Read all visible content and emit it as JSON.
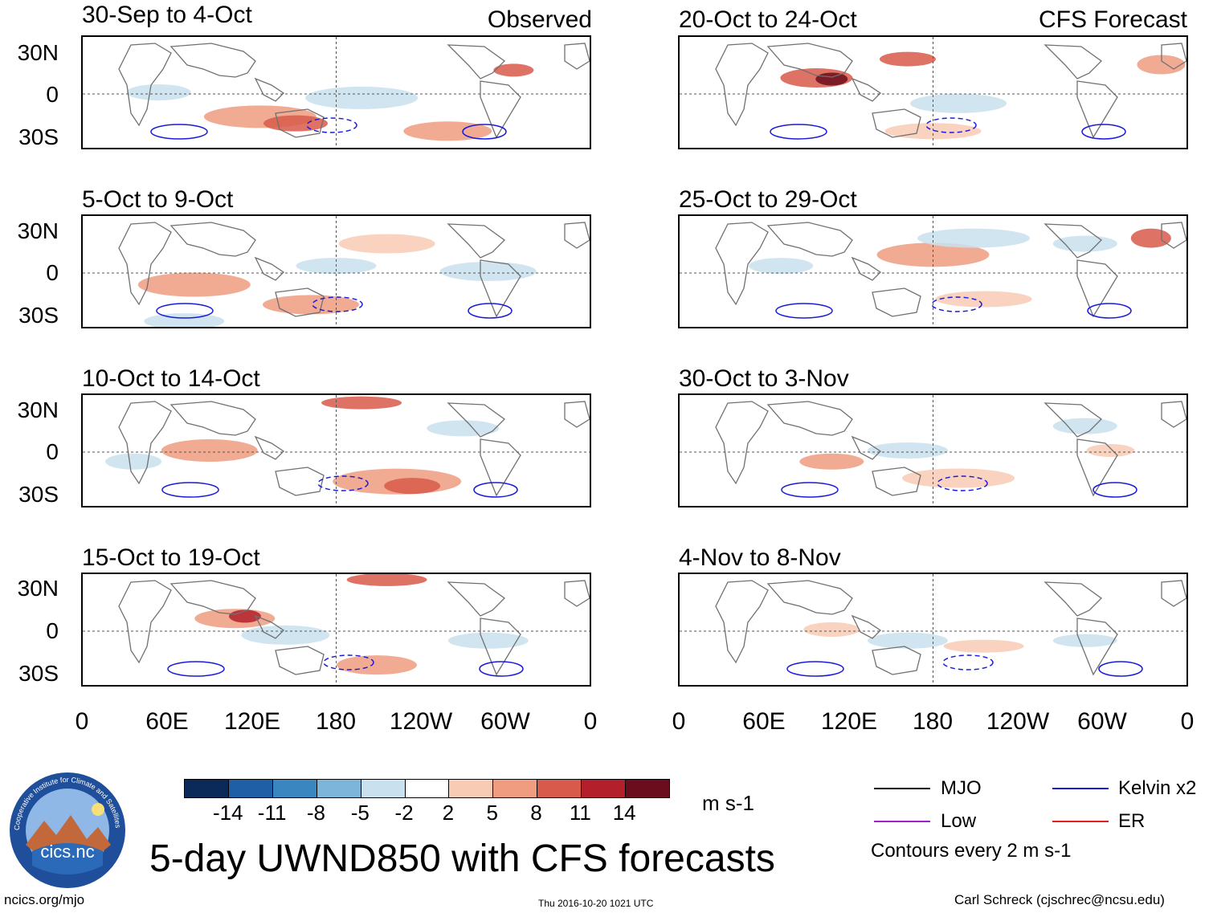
{
  "figure_title": "5-day UWND850 with CFS forecasts",
  "observed_label": "Observed",
  "forecast_label": "CFS Forecast",
  "panels": [
    {
      "period": "30-Sep to 4-Oct"
    },
    {
      "period": "5-Oct to 9-Oct"
    },
    {
      "period": "10-Oct to 14-Oct"
    },
    {
      "period": "15-Oct to 19-Oct"
    },
    {
      "period": "20-Oct to 24-Oct"
    },
    {
      "period": "25-Oct to 29-Oct"
    },
    {
      "period": "30-Oct to 3-Nov"
    },
    {
      "period": "4-Nov to 8-Nov"
    }
  ],
  "lat_labels": [
    "30N",
    "0",
    "30S"
  ],
  "lon_labels": [
    "0",
    "60E",
    "120E",
    "180",
    "120W",
    "60W",
    "0"
  ],
  "colorbar": {
    "levels": [
      "-14",
      "-11",
      "-8",
      "-5",
      "-2",
      "2",
      "5",
      "8",
      "11",
      "14"
    ],
    "colors": [
      "#0b2a5a",
      "#1f5fa6",
      "#3a86c1",
      "#7db5da",
      "#c9e0ef",
      "#ffffff",
      "#f8cbb4",
      "#ef9c80",
      "#d85a4a",
      "#b3202c",
      "#6b0d1c"
    ],
    "units": "m s-1"
  },
  "legend": {
    "mjo": "MJO",
    "kelvin": "Kelvin x2",
    "low": "Low",
    "er": "ER",
    "contour_note": "Contours every 2 m s-1",
    "colors": {
      "mjo": "#000000",
      "kelvin": "#1a1adb",
      "low": "#a020d0",
      "er": "#e02020"
    }
  },
  "logo_text": "cics.nc",
  "logo_ring_text": "Cooperative Institute for Climate and Satellites",
  "footer": {
    "left": "ncics.org/mjo",
    "center": "Thu 2016-10-20 1021 UTC",
    "right": "Carl Schreck (cjschrec@ncsu.edu)"
  }
}
